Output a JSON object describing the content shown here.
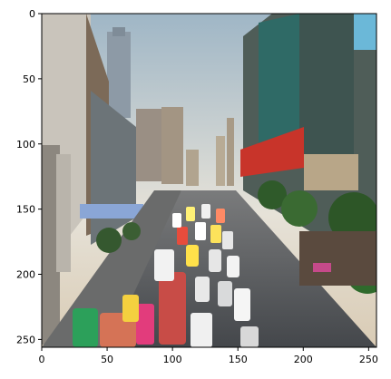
{
  "chart_data": {
    "type": "image",
    "x_ticks": [
      "0",
      "50",
      "100",
      "150",
      "200",
      "250"
    ],
    "y_ticks": [
      "0",
      "50",
      "100",
      "150",
      "200",
      "250"
    ],
    "xlim": [
      0,
      256
    ],
    "ylim": [
      256,
      0
    ],
    "title": "",
    "xlabel": "",
    "ylabel": ""
  },
  "image": {
    "subject": "city street with heavy traffic between tall buildings",
    "colors": {
      "sky": "#cfd6dc",
      "road": "#56595d",
      "buildings": "#6a5a4a",
      "trees": "#2f5a2a"
    }
  }
}
